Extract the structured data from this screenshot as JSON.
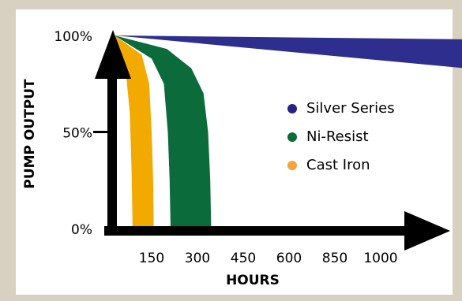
{
  "chart_data": {
    "type": "band",
    "y_label": "PUMP OUTPUT",
    "x_label": "HOURS",
    "xlim": [
      0,
      1280
    ],
    "xticks": [
      150,
      300,
      450,
      600,
      850,
      1000
    ],
    "ylim": [
      0,
      100
    ],
    "yticks": [
      {
        "value": 0,
        "label": "0%"
      },
      {
        "value": 50,
        "label": "50%"
      },
      {
        "value": 100,
        "label": "100%"
      }
    ],
    "series": [
      {
        "name": "Silver Series",
        "color": "#2e2e8e",
        "x": [
          0,
          1280
        ],
        "values": [
          100,
          98
        ],
        "inner_x": [
          0,
          1280
        ],
        "inner_values": [
          100,
          83
        ]
      },
      {
        "name": "Ni-Resist",
        "color": "#0b6b3a",
        "x": [
          0,
          200,
          280,
          320,
          335,
          342,
          345
        ],
        "values": [
          100,
          93,
          83,
          70,
          50,
          25,
          0
        ],
        "inner_x": [
          0,
          150,
          190,
          203,
          209,
          212
        ],
        "inner_values": [
          100,
          88,
          75,
          50,
          25,
          0
        ]
      },
      {
        "name": "Cast Iron",
        "color": "#f2a900",
        "x": [
          0,
          110,
          140,
          150,
          155,
          157
        ],
        "values": [
          100,
          90,
          75,
          50,
          25,
          0
        ],
        "inner_x": [
          0,
          45,
          62,
          69,
          73
        ],
        "inner_values": [
          100,
          82,
          60,
          30,
          0
        ]
      }
    ],
    "legend_colors": [
      "#23238a",
      "#0b6b3a",
      "#f5a33a"
    ]
  }
}
